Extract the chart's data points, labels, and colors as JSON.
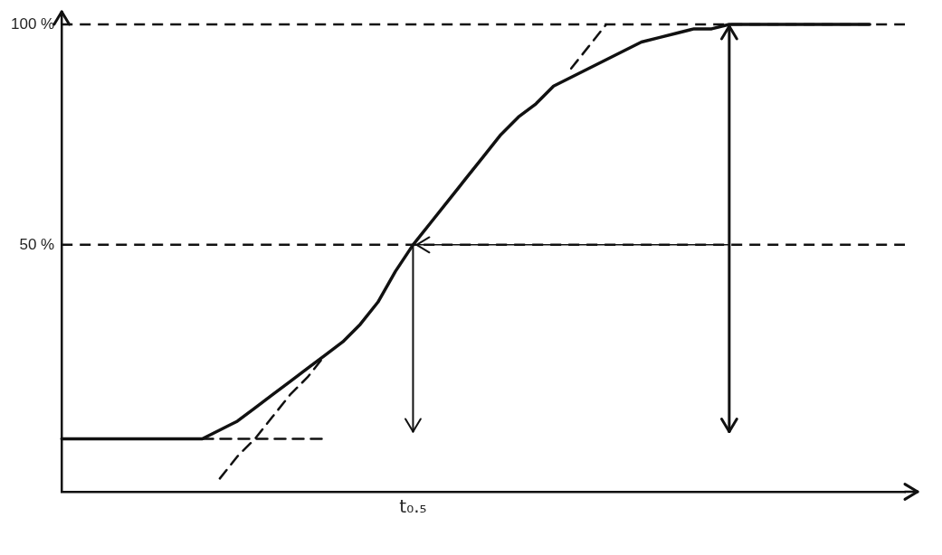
{
  "chart_data": {
    "type": "line",
    "categories": [
      null,
      null,
      null,
      null,
      null,
      null,
      null,
      null,
      null,
      null,
      null,
      null,
      null,
      null,
      null,
      null,
      null,
      null,
      null,
      null,
      "t₀.₅",
      null,
      null,
      null,
      null,
      null,
      null,
      null,
      null,
      null,
      null,
      null,
      null,
      null,
      null,
      null,
      null,
      null,
      null,
      null,
      null,
      null,
      null,
      null,
      null,
      null,
      null,
      null,
      null
    ],
    "series": [
      {
        "color": "#111111",
        "line_style": "solid",
        "values": [
          6,
          6,
          6,
          6,
          6,
          6,
          6,
          6,
          6,
          8,
          10,
          13,
          16,
          19,
          22,
          25,
          28,
          32,
          37,
          44,
          50,
          55,
          60,
          65,
          70,
          75,
          79,
          82,
          86,
          88,
          90,
          92,
          94,
          96,
          97,
          98,
          99,
          99,
          100,
          100,
          100,
          100,
          100,
          100,
          100,
          100,
          100,
          null,
          null
        ]
      },
      {
        "color": "#111111",
        "line_style": "dashed",
        "values": [
          null,
          null,
          null,
          null,
          null,
          null,
          null,
          null,
          null,
          -3,
          2,
          6,
          11,
          16,
          20,
          25,
          null,
          null,
          null,
          null,
          null,
          null,
          null,
          null,
          null,
          null,
          null,
          null,
          null,
          null,
          null,
          null,
          null,
          null,
          null,
          null,
          null,
          null,
          null,
          null,
          null,
          null,
          null,
          null,
          null,
          null,
          null,
          null,
          null
        ]
      },
      {
        "color": "#111111",
        "line_style": "dashed",
        "values": [
          null,
          null,
          null,
          null,
          null,
          null,
          null,
          null,
          null,
          null,
          null,
          null,
          null,
          null,
          null,
          null,
          null,
          null,
          null,
          null,
          null,
          null,
          null,
          null,
          null,
          null,
          null,
          null,
          null,
          90,
          95,
          100,
          null,
          null,
          null,
          null,
          null,
          null,
          null,
          null,
          null,
          null,
          null,
          null,
          null,
          null,
          null,
          null,
          null
        ]
      },
      {
        "color": "#111111",
        "line_style": "dashed",
        "values": [
          null,
          null,
          null,
          null,
          null,
          null,
          null,
          null,
          6,
          6,
          6,
          6,
          6,
          6,
          6,
          6,
          null,
          null,
          null,
          null,
          null,
          null,
          null,
          null,
          null,
          null,
          null,
          null,
          null,
          null,
          null,
          null,
          null,
          null,
          null,
          null,
          null,
          null,
          null,
          null,
          null,
          null,
          null,
          null,
          null,
          null,
          null,
          null,
          null
        ]
      }
    ],
    "ylim": [
      -6,
      100
    ],
    "yticks": [
      {
        "value": 50,
        "label": "50 %"
      },
      {
        "value": 100,
        "label": "100 %"
      }
    ],
    "ref_lines": [
      {
        "axis": "y",
        "value": 50,
        "color": "#111111",
        "line_style": "dashed"
      },
      {
        "axis": "y",
        "value": 100,
        "color": "#111111",
        "line_style": "dashed"
      }
    ],
    "grid": false,
    "legend": false,
    "marker": "none"
  }
}
